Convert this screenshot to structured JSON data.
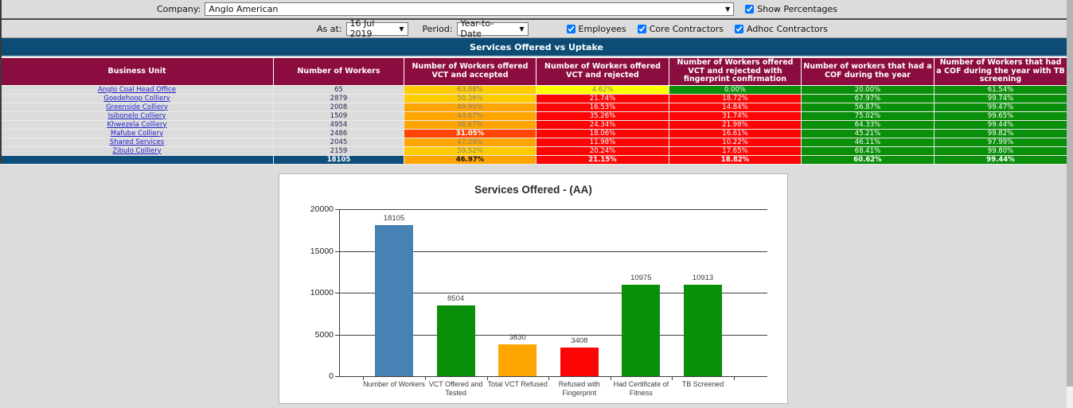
{
  "toolbar": {
    "company_label": "Company:",
    "company_value": "Anglo American",
    "show_percentages_label": "Show Percentages",
    "show_percentages_checked": true,
    "as_at_label": "As at:",
    "as_at_value": "16 Jul 2019",
    "period_label": "Period:",
    "period_value": "Year-to-Date",
    "filters": [
      {
        "label": "Employees",
        "checked": true
      },
      {
        "label": "Core Contractors",
        "checked": true
      },
      {
        "label": "Adhoc Contractors",
        "checked": true
      }
    ]
  },
  "icons": {
    "dropdown_arrow": "▼"
  },
  "section_title": "Services Offered vs Uptake",
  "colors": {
    "gold": "#ffcc00",
    "yellow": "#ffff00",
    "orange": "#ffa500",
    "orangered": "#ff4500",
    "red": "#fb0505",
    "green": "#0a8f0a",
    "blue": "#4682b4",
    "navy_total": "#0d4f7a",
    "header_maroon": "#8b0c3e",
    "title_blue": "#0c4c75",
    "fg_gray": "#808080",
    "fg_white": "#ffffff",
    "fg_black": "#111111"
  },
  "table": {
    "columns": [
      "Business Unit",
      "Number of Workers",
      "Number of Workers offered VCT and accepted",
      "Number of Workers offered VCT and rejected",
      "Number of Workers offered VCT and rejected with fingerprint confirmation",
      "Number of workers that had a COF during the year",
      "Number of Workers that had a COF during the year with TB screening"
    ],
    "rows": [
      {
        "name": "Anglo Coal Head Office",
        "workers": "65",
        "cells": [
          {
            "v": "63.08%",
            "bg": "gold",
            "fg": "gray",
            "b": false
          },
          {
            "v": "4.62%",
            "bg": "yellow",
            "fg": "gray",
            "b": false
          },
          {
            "v": "0.00%",
            "bg": "green",
            "fg": "white",
            "b": false
          },
          {
            "v": "20.00%",
            "bg": "green",
            "fg": "white",
            "b": false
          },
          {
            "v": "61.54%",
            "bg": "green",
            "fg": "white",
            "b": false
          }
        ]
      },
      {
        "name": "Goedehoop Colliery",
        "workers": "2879",
        "cells": [
          {
            "v": "50.36%",
            "bg": "gold",
            "fg": "gray",
            "b": false
          },
          {
            "v": "21.74%",
            "bg": "red",
            "fg": "white",
            "b": false
          },
          {
            "v": "18.72%",
            "bg": "red",
            "fg": "white",
            "b": false
          },
          {
            "v": "67.97%",
            "bg": "green",
            "fg": "white",
            "b": false
          },
          {
            "v": "99.74%",
            "bg": "green",
            "fg": "white",
            "b": false
          }
        ]
      },
      {
        "name": "Greenside Colliery",
        "workers": "2008",
        "cells": [
          {
            "v": "49.95%",
            "bg": "orange",
            "fg": "gray",
            "b": false
          },
          {
            "v": "16.53%",
            "bg": "red",
            "fg": "white",
            "b": false
          },
          {
            "v": "14.84%",
            "bg": "red",
            "fg": "white",
            "b": false
          },
          {
            "v": "56.87%",
            "bg": "green",
            "fg": "white",
            "b": false
          },
          {
            "v": "99.47%",
            "bg": "green",
            "fg": "white",
            "b": false
          }
        ]
      },
      {
        "name": "Isibonelo Colliery",
        "workers": "1509",
        "cells": [
          {
            "v": "44.67%",
            "bg": "orange",
            "fg": "gray",
            "b": false
          },
          {
            "v": "35.26%",
            "bg": "red",
            "fg": "white",
            "b": false
          },
          {
            "v": "31.74%",
            "bg": "red",
            "fg": "white",
            "b": false
          },
          {
            "v": "75.02%",
            "bg": "green",
            "fg": "white",
            "b": false
          },
          {
            "v": "99.65%",
            "bg": "green",
            "fg": "white",
            "b": false
          }
        ]
      },
      {
        "name": "Khwezela Colliery",
        "workers": "4954",
        "cells": [
          {
            "v": "46.67%",
            "bg": "orange",
            "fg": "gray",
            "b": false
          },
          {
            "v": "24.34%",
            "bg": "red",
            "fg": "white",
            "b": false
          },
          {
            "v": "21.98%",
            "bg": "red",
            "fg": "white",
            "b": false
          },
          {
            "v": "64.33%",
            "bg": "green",
            "fg": "white",
            "b": false
          },
          {
            "v": "99.44%",
            "bg": "green",
            "fg": "white",
            "b": false
          }
        ]
      },
      {
        "name": "Mafube Colliery",
        "workers": "2486",
        "cells": [
          {
            "v": "31.05%",
            "bg": "orangered",
            "fg": "white",
            "b": true
          },
          {
            "v": "18.06%",
            "bg": "red",
            "fg": "white",
            "b": false
          },
          {
            "v": "16.61%",
            "bg": "red",
            "fg": "white",
            "b": false
          },
          {
            "v": "45.21%",
            "bg": "green",
            "fg": "white",
            "b": false
          },
          {
            "v": "99.82%",
            "bg": "green",
            "fg": "white",
            "b": false
          }
        ]
      },
      {
        "name": "Shared Services",
        "workers": "2045",
        "cells": [
          {
            "v": "47.29%",
            "bg": "orange",
            "fg": "gray",
            "b": false
          },
          {
            "v": "11.98%",
            "bg": "red",
            "fg": "white",
            "b": false
          },
          {
            "v": "10.22%",
            "bg": "red",
            "fg": "white",
            "b": false
          },
          {
            "v": "46.11%",
            "bg": "green",
            "fg": "white",
            "b": false
          },
          {
            "v": "97.99%",
            "bg": "green",
            "fg": "white",
            "b": false
          }
        ]
      },
      {
        "name": "Zibulo Colliery",
        "workers": "2159",
        "cells": [
          {
            "v": "59.52%",
            "bg": "gold",
            "fg": "gray",
            "b": false
          },
          {
            "v": "20.24%",
            "bg": "red",
            "fg": "white",
            "b": false
          },
          {
            "v": "17.65%",
            "bg": "red",
            "fg": "white",
            "b": false
          },
          {
            "v": "68.41%",
            "bg": "green",
            "fg": "white",
            "b": false
          },
          {
            "v": "99.80%",
            "bg": "green",
            "fg": "white",
            "b": false
          }
        ]
      }
    ],
    "total": {
      "name": "",
      "workers": "18105",
      "cells": [
        {
          "v": "46.97%",
          "bg": "orange",
          "fg": "black",
          "b": true
        },
        {
          "v": "21.15%",
          "bg": "red",
          "fg": "white",
          "b": true
        },
        {
          "v": "18.82%",
          "bg": "red",
          "fg": "white",
          "b": true
        },
        {
          "v": "60.62%",
          "bg": "green",
          "fg": "white",
          "b": true
        },
        {
          "v": "99.44%",
          "bg": "green",
          "fg": "white",
          "b": true
        }
      ]
    }
  },
  "chart_data": {
    "type": "bar",
    "title": "Services Offered - (AA)",
    "categories": [
      "Number of Workers",
      "VCT Offered and Tested",
      "Total VCT Refused",
      "Refused with Fingerprint",
      "Had Certificate of Fitness",
      "TB Screened"
    ],
    "values": [
      18105,
      8504,
      3830,
      3408,
      10975,
      10913
    ],
    "bar_colors": [
      "blue",
      "green",
      "orange",
      "red",
      "green",
      "green"
    ],
    "data_labels": [
      "18105",
      "8504",
      "3830",
      "3408",
      "10975",
      "10913"
    ],
    "xlabel": "",
    "ylabel": "",
    "ylim": [
      0,
      20000
    ],
    "yticks": [
      0,
      5000,
      10000,
      15000,
      20000
    ],
    "grid": true,
    "legend": "none"
  }
}
